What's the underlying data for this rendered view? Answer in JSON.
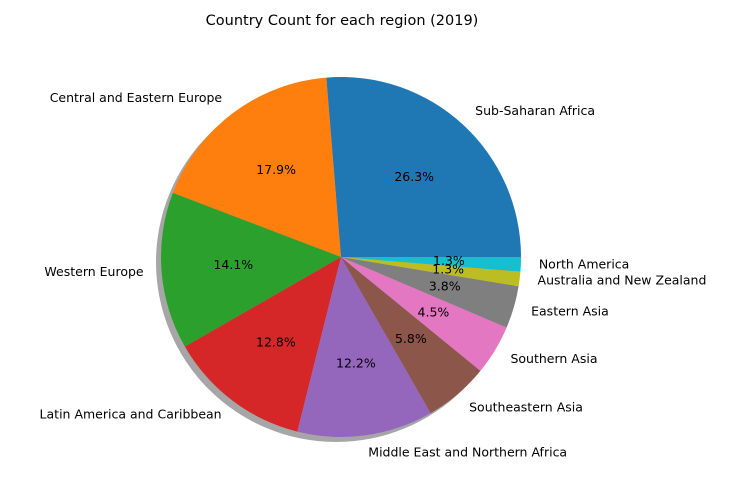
{
  "chart_data": {
    "type": "pie",
    "title": "Country Count for each region (2019)",
    "categories": [
      "Sub-Saharan Africa",
      "Central and Eastern Europe",
      "Western Europe",
      "Latin America and Caribbean",
      "Middle East and Northern Africa",
      "Southeastern Asia",
      "Southern Asia",
      "Eastern Asia",
      "Australia and New Zealand",
      "North America"
    ],
    "values": [
      26.3,
      17.9,
      14.1,
      12.8,
      12.2,
      5.8,
      4.5,
      3.8,
      1.3,
      1.3
    ],
    "percent_labels": [
      "26.3%",
      "17.9%",
      "14.1%",
      "12.8%",
      "12.2%",
      "5.8%",
      "4.5%",
      "3.8%",
      "1.3%",
      "1.3%"
    ],
    "colors": [
      "#1f77b4",
      "#ff7f0e",
      "#2ca02c",
      "#d62728",
      "#9467bd",
      "#8c564b",
      "#e377c2",
      "#7f7f7f",
      "#bcbd22",
      "#17becf"
    ],
    "start_angle_deg": 0,
    "direction": "counterclockwise",
    "shadow": true,
    "legend": false
  }
}
